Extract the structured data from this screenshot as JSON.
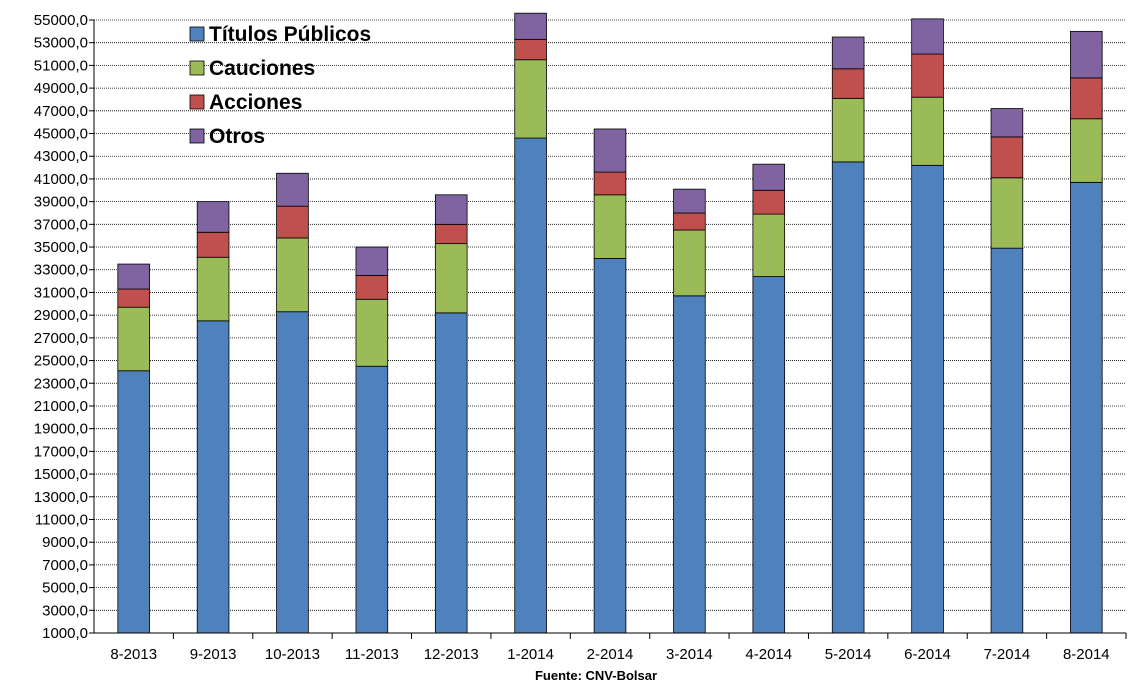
{
  "chart_data": {
    "type": "bar",
    "stacked": true,
    "categories": [
      "8-2013",
      "9-2013",
      "10-2013",
      "11-2013",
      "12-2013",
      "1-2014",
      "2-2014",
      "3-2014",
      "4-2014",
      "5-2014",
      "6-2014",
      "7-2014",
      "8-2014"
    ],
    "series": [
      {
        "name": "Títulos Públicos",
        "color": "#4f81bd",
        "values": [
          23100,
          27500,
          28300,
          23500,
          28200,
          43600,
          33000,
          29700,
          31400,
          41500,
          41200,
          33900,
          39700
        ]
      },
      {
        "name": "Cauciones",
        "color": "#9bbb59",
        "values": [
          5600,
          5600,
          6500,
          5900,
          6100,
          6900,
          5600,
          5800,
          5500,
          5600,
          6000,
          6200,
          5600
        ]
      },
      {
        "name": "Acciones",
        "color": "#c0504d",
        "values": [
          1600,
          2200,
          2800,
          2100,
          1700,
          1800,
          2000,
          1500,
          2100,
          2600,
          3800,
          3600,
          3600
        ]
      },
      {
        "name": "Otros",
        "color": "#8064a2",
        "values": [
          2200,
          2700,
          2900,
          2500,
          2600,
          2300,
          3800,
          2100,
          2300,
          2800,
          3100,
          2500,
          4100
        ]
      }
    ],
    "ylim": [
      1000,
      55000
    ],
    "yticks": [
      "1000,0",
      "3000,0",
      "5000,0",
      "7000,0",
      "9000,0",
      "11000,0",
      "13000,0",
      "15000,0",
      "17000,0",
      "19000,0",
      "21000,0",
      "23000,0",
      "25000,0",
      "27000,0",
      "29000,0",
      "31000,0",
      "33000,0",
      "35000,0",
      "37000,0",
      "39000,0",
      "41000,0",
      "43000,0",
      "45000,0",
      "47000,0",
      "49000,0",
      "51000,0",
      "53000,0",
      "55000,0"
    ],
    "grid": true,
    "legend_position": "top-left",
    "source": "Fuente: CNV-Bolsar"
  }
}
